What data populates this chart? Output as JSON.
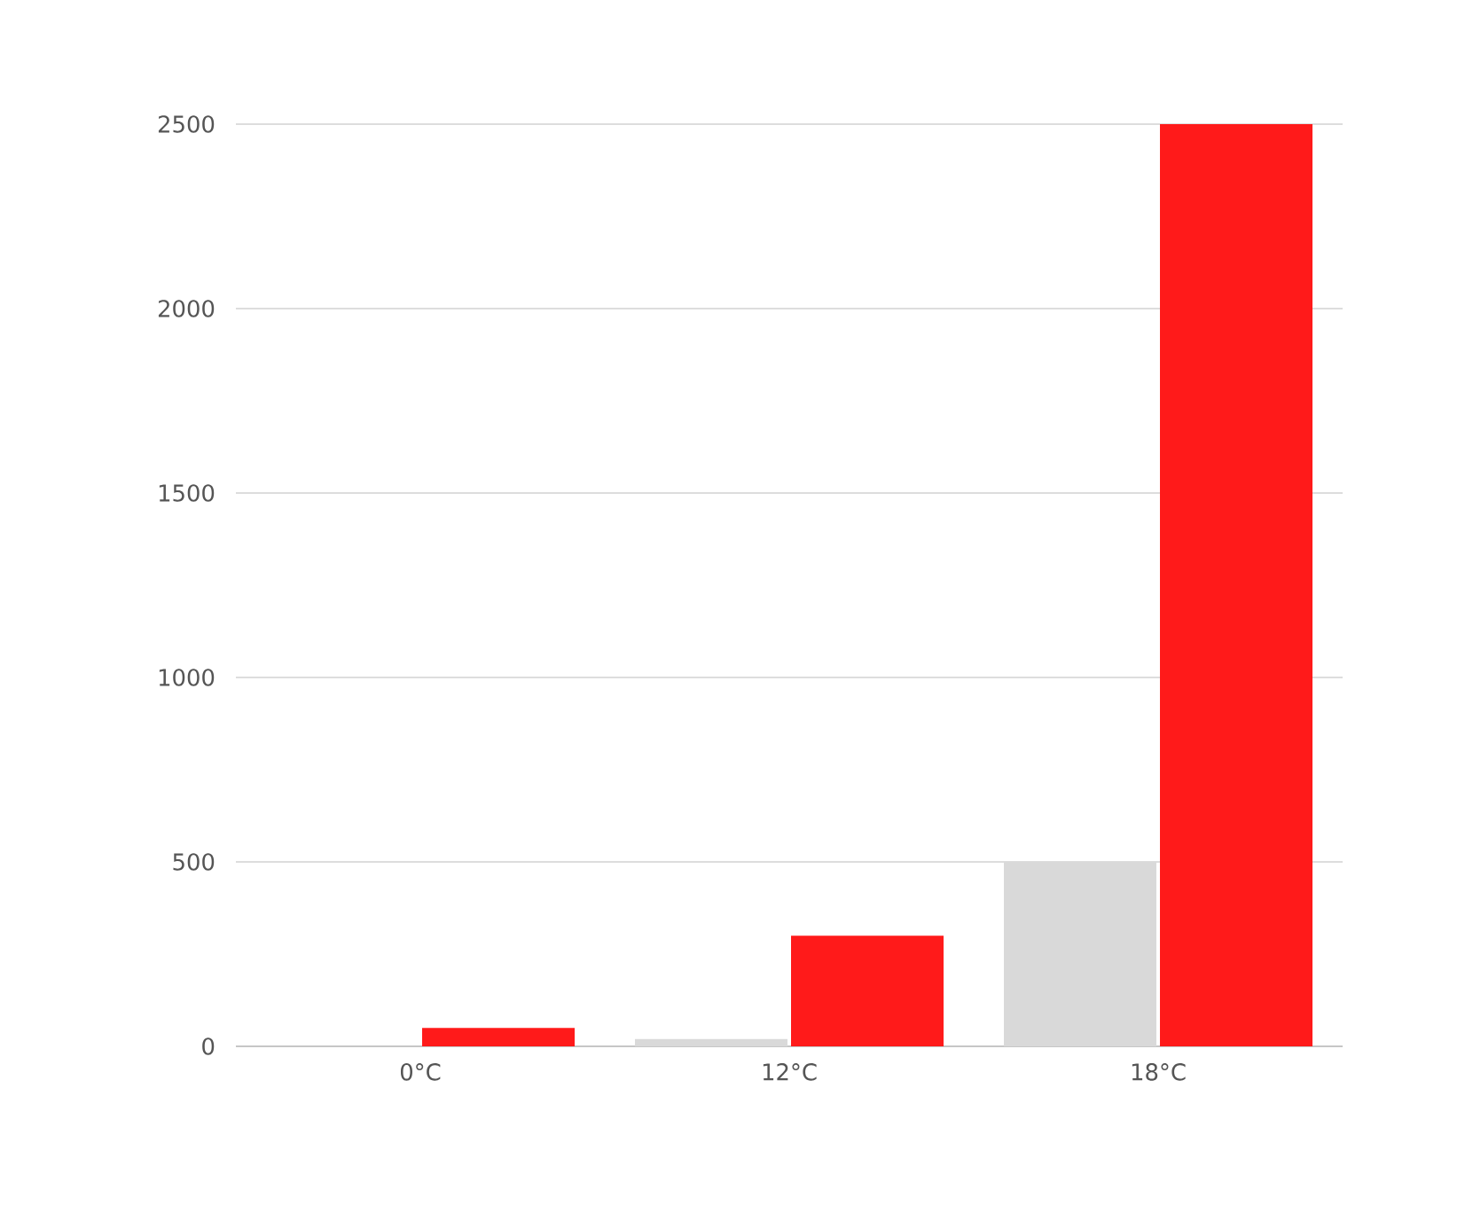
{
  "chart_data": {
    "type": "bar",
    "categories": [
      "0°C",
      "12°C",
      "18°C"
    ],
    "series": [
      {
        "color": "#d9d9d9",
        "values": [
          0,
          20,
          500
        ]
      },
      {
        "color": "#ff1a1a",
        "values": [
          50,
          300,
          2500
        ]
      }
    ],
    "ylim": [
      0,
      2500
    ],
    "yticks": [
      0,
      500,
      1000,
      1500,
      2000,
      2500
    ],
    "grid": "y"
  }
}
